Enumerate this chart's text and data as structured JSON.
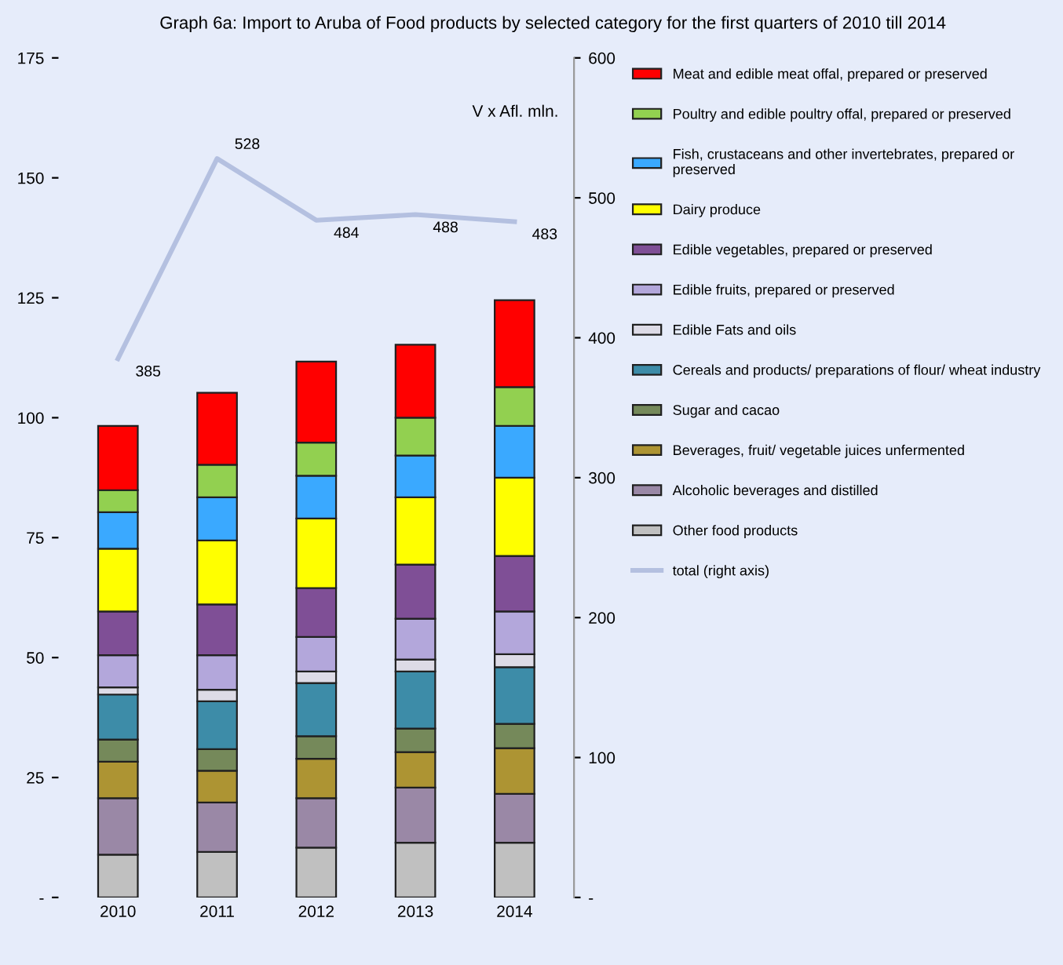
{
  "chart_data": {
    "type": "bar",
    "stacked": true,
    "title": "Graph 6a: Import to Aruba of Food products by selected category for the first quarters of 2010 till 2014",
    "categories": [
      "2010",
      "2011",
      "2012",
      "2013",
      "2014"
    ],
    "series": [
      {
        "name": "Other food products",
        "color": "#c0c0c0",
        "values": [
          8.9,
          9.5,
          10.4,
          11.4,
          11.4
        ]
      },
      {
        "name": "Alcoholic beverages and distilled",
        "color": "#9a88a6",
        "values": [
          11.8,
          10.3,
          10.3,
          11.5,
          10.2
        ]
      },
      {
        "name": "Beverages, fruit/ vegetable juices unfermented",
        "color": "#ad9433",
        "values": [
          7.6,
          6.6,
          8.2,
          7.4,
          9.5
        ]
      },
      {
        "name": "Sugar and cacao",
        "color": "#75895a",
        "values": [
          4.6,
          4.5,
          4.7,
          4.9,
          5.1
        ]
      },
      {
        "name": "Cereals and products/ preparations of flour/ wheat industry",
        "color": "#3d8ca8",
        "values": [
          9.4,
          10.0,
          11.1,
          11.9,
          11.8
        ]
      },
      {
        "name": "Edible Fats and oils",
        "color": "#dddbe6",
        "values": [
          1.5,
          2.4,
          2.4,
          2.5,
          2.7
        ]
      },
      {
        "name": "Edible fruits, prepared or preserved",
        "color": "#b3a7db",
        "values": [
          6.7,
          7.2,
          7.2,
          8.5,
          8.9
        ]
      },
      {
        "name": "Edible vegetables, prepared or preserved",
        "color": "#7f4f96",
        "values": [
          9.1,
          10.6,
          10.2,
          11.3,
          11.6
        ]
      },
      {
        "name": "Dairy produce",
        "color": "#ffff00",
        "values": [
          13.1,
          13.3,
          14.5,
          14.0,
          16.3
        ]
      },
      {
        "name": "Fish, crustaceans and other invertebrates, prepared or preserved",
        "color": "#3aa9ff",
        "values": [
          7.6,
          9.0,
          8.9,
          8.7,
          10.8
        ]
      },
      {
        "name": "Poultry and edible poultry offal, prepared or preserved",
        "color": "#92d050",
        "values": [
          4.6,
          6.8,
          6.9,
          7.9,
          8.1
        ]
      },
      {
        "name": "Meat and edible meat offal, prepared or preserved",
        "color": "#ff0000",
        "values": [
          13.4,
          15.0,
          16.9,
          15.2,
          18.1
        ]
      },
      {
        "name": "total (right axis)",
        "type": "line",
        "axis": "y2",
        "color": "#b4c0e0",
        "values": [
          385,
          528,
          484,
          488,
          483
        ],
        "value_labels": [
          "385",
          "528",
          "484",
          "488",
          "483"
        ]
      }
    ],
    "ylim": [
      0,
      175
    ],
    "yticks": [
      {
        "value": 0,
        "label": "-"
      },
      25,
      50,
      75,
      100,
      125,
      150,
      175
    ],
    "y2lim": [
      0,
      600
    ],
    "y2ticks": [
      {
        "value": 0,
        "label": "-"
      },
      100,
      200,
      300,
      400,
      500,
      600
    ],
    "annotations": [
      "V x Afl. mln."
    ],
    "legend": "right",
    "grid": false,
    "marker": "none"
  }
}
